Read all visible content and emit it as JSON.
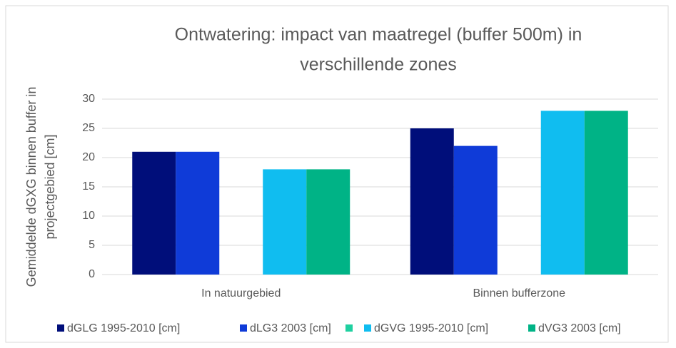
{
  "chart_data": {
    "type": "bar",
    "title": [
      "Ontwatering: impact van maatregel (buffer 500m) in",
      "verschillende zones"
    ],
    "y_label": [
      "Gemiddelde dGXG binnen buffer in",
      "projectgebied [cm]"
    ],
    "categories": [
      "In natuurgebied",
      "Binnen bufferzone"
    ],
    "series": [
      {
        "name": "dGLG 1995-2010 [cm]",
        "color": "#000e7a",
        "values": [
          21,
          25
        ]
      },
      {
        "name": "dLG3 2003 [cm]",
        "color": "#0f3bd8",
        "values": [
          21,
          22
        ]
      },
      {
        "name": null,
        "color": "#1fd0a0",
        "values": [
          null,
          null
        ]
      },
      {
        "name": "dGVG 1995-2010 [cm]",
        "color": "#10bdf0",
        "values": [
          18,
          28
        ]
      },
      {
        "name": "dVG3 2003 [cm]",
        "color": "#00b386",
        "values": [
          18,
          28
        ]
      }
    ],
    "ylim": [
      0,
      30
    ],
    "yticks": [
      0,
      5,
      10,
      15,
      20,
      25,
      30
    ],
    "grid": true,
    "legend": "bottom"
  }
}
